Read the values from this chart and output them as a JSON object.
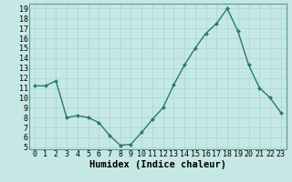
{
  "x": [
    0,
    1,
    2,
    3,
    4,
    5,
    6,
    7,
    8,
    9,
    10,
    11,
    12,
    13,
    14,
    15,
    16,
    17,
    18,
    19,
    20,
    21,
    22,
    23
  ],
  "y": [
    11.2,
    11.2,
    11.7,
    8.0,
    8.2,
    8.0,
    7.5,
    6.2,
    5.2,
    5.3,
    6.5,
    7.8,
    9.0,
    11.3,
    13.3,
    15.0,
    16.5,
    17.5,
    19.0,
    16.7,
    13.3,
    11.0,
    10.0,
    8.5
  ],
  "xlim": [
    -0.5,
    23.5
  ],
  "ylim": [
    4.8,
    19.5
  ],
  "yticks": [
    5,
    6,
    7,
    8,
    9,
    10,
    11,
    12,
    13,
    14,
    15,
    16,
    17,
    18,
    19
  ],
  "xticks": [
    0,
    1,
    2,
    3,
    4,
    5,
    6,
    7,
    8,
    9,
    10,
    11,
    12,
    13,
    14,
    15,
    16,
    17,
    18,
    19,
    20,
    21,
    22,
    23
  ],
  "xlabel": "Humidex (Indice chaleur)",
  "line_color": "#2a7a68",
  "marker_color": "#2a7a68",
  "bg_color": "#c5e8e5",
  "grid_color": "#aad4cf",
  "spine_color": "#5a9a90",
  "xlabel_fontsize": 7.5,
  "tick_fontsize": 6,
  "linewidth": 1.0,
  "markersize": 2.0
}
